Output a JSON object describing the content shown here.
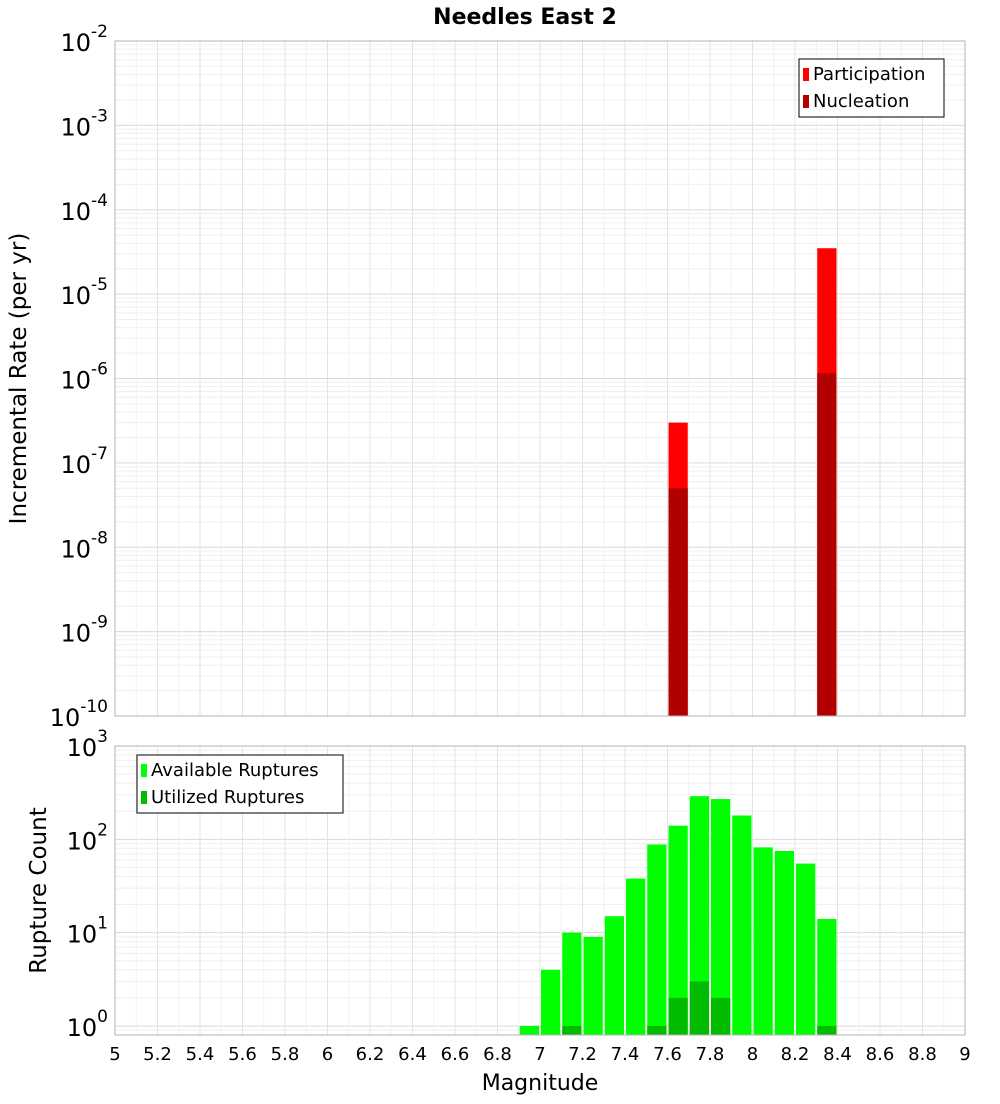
{
  "chart_data": [
    {
      "type": "bar",
      "title": "Needles East 2",
      "xlabel": "",
      "ylabel": "Incremental Rate (per yr)",
      "yscale": "log",
      "ylim": [
        1e-10,
        0.01
      ],
      "y_tick_labels": [
        {
          "base": "10",
          "exp": "-10"
        },
        {
          "base": "10",
          "exp": "-9"
        },
        {
          "base": "10",
          "exp": "-8"
        },
        {
          "base": "10",
          "exp": "-7"
        },
        {
          "base": "10",
          "exp": "-6"
        },
        {
          "base": "10",
          "exp": "-5"
        },
        {
          "base": "10",
          "exp": "-4"
        },
        {
          "base": "10",
          "exp": "-3"
        },
        {
          "base": "10",
          "exp": "-2"
        }
      ],
      "xlim": [
        5,
        9
      ],
      "bin_width": 0.1,
      "grid": true,
      "legend_position": "top-right",
      "series": [
        {
          "name": "Participation",
          "color": "#ff0000",
          "x": [
            7.65,
            8.35
          ],
          "values": [
            3e-07,
            3.5e-05
          ]
        },
        {
          "name": "Nucleation",
          "color": "#b00000",
          "x": [
            7.65,
            8.35
          ],
          "values": [
            5e-08,
            1.15e-06
          ]
        }
      ]
    },
    {
      "type": "bar",
      "title": "",
      "xlabel": "Magnitude",
      "ylabel": "Rupture Count",
      "yscale": "log",
      "ylim": [
        0.8,
        1000
      ],
      "y_tick_labels": [
        {
          "base": "10",
          "exp": "0"
        },
        {
          "base": "10",
          "exp": "1"
        },
        {
          "base": "10",
          "exp": "2"
        },
        {
          "base": "10",
          "exp": "3"
        }
      ],
      "xlim": [
        5,
        9
      ],
      "x_tick_labels": [
        "5",
        "5.2",
        "5.4",
        "5.6",
        "5.8",
        "6",
        "6.2",
        "6.4",
        "6.6",
        "6.8",
        "7",
        "7.2",
        "7.4",
        "7.6",
        "7.8",
        "8",
        "8.2",
        "8.4",
        "8.6",
        "8.8",
        "9"
      ],
      "bin_width": 0.1,
      "grid": true,
      "legend_position": "top-left",
      "series": [
        {
          "name": "Available Ruptures",
          "color": "#00ff00",
          "x": [
            6.95,
            7.05,
            7.15,
            7.25,
            7.35,
            7.45,
            7.55,
            7.65,
            7.75,
            7.85,
            7.95,
            8.05,
            8.15,
            8.25,
            8.35
          ],
          "values": [
            1,
            4,
            10,
            9,
            15,
            38,
            88,
            140,
            290,
            270,
            180,
            82,
            75,
            55,
            14
          ]
        },
        {
          "name": "Utilized Ruptures",
          "color": "#00bb00",
          "x": [
            7.15,
            7.55,
            7.65,
            7.75,
            7.85,
            8.35
          ],
          "values": [
            1,
            1,
            2,
            3,
            2,
            1
          ]
        }
      ]
    }
  ]
}
